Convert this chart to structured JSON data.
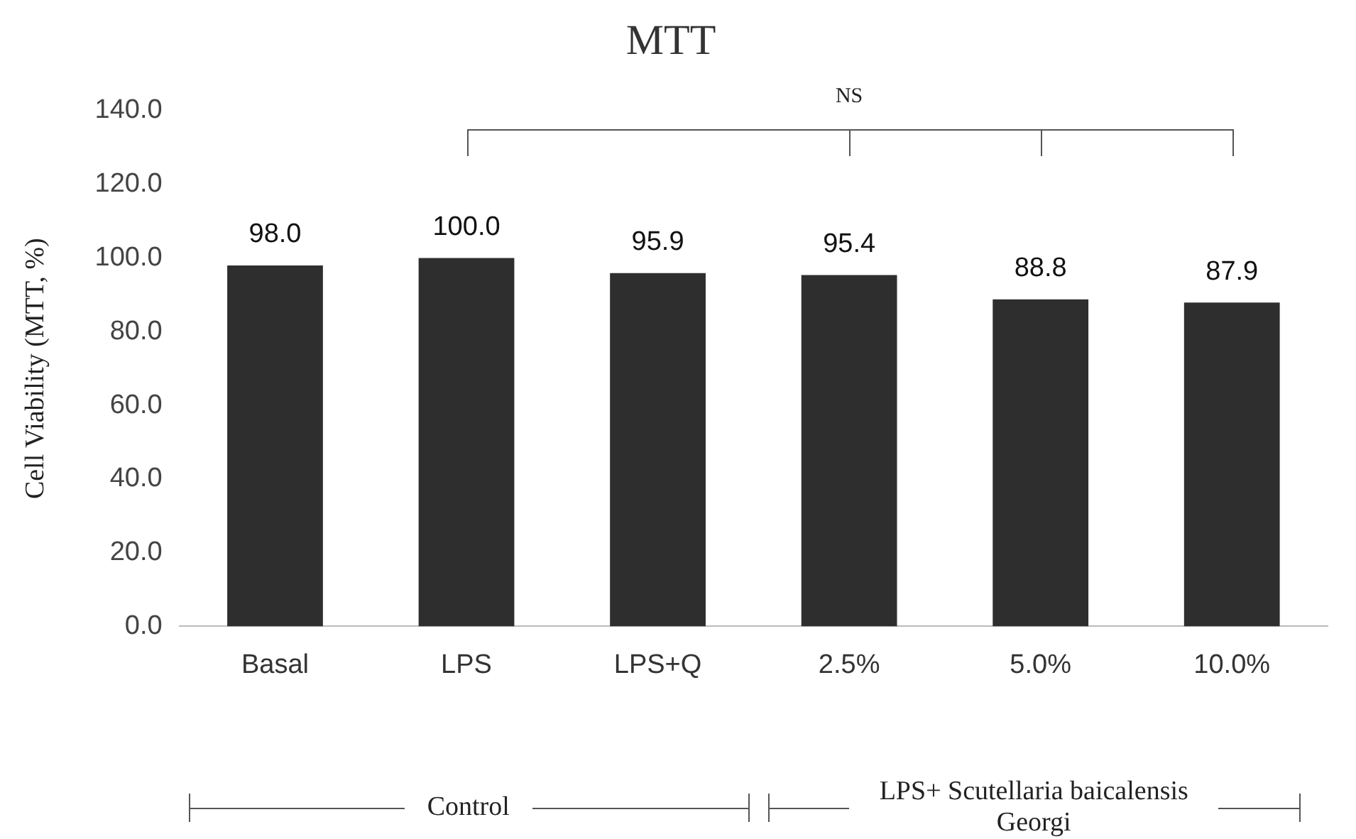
{
  "chart_data": {
    "type": "bar",
    "title": "MTT",
    "ylabel": "Cell Viability (MTT, %)",
    "categories": [
      "Basal",
      "LPS",
      "LPS+Q",
      "2.5%",
      "5.0%",
      "10.0%"
    ],
    "values": [
      98.0,
      100.0,
      95.9,
      95.4,
      88.8,
      87.9
    ],
    "value_labels": [
      "98.0",
      "100.0",
      "95.9",
      "95.4",
      "88.8",
      "87.9"
    ],
    "color": "#2e2e2e",
    "ylim": [
      0,
      140
    ],
    "yticks": [
      {
        "value": 0,
        "label": "0.0"
      },
      {
        "value": 20,
        "label": "20.0"
      },
      {
        "value": 40,
        "label": "40.0"
      },
      {
        "value": 60,
        "label": "60.0"
      },
      {
        "value": 80,
        "label": "80.0"
      },
      {
        "value": 100,
        "label": "100.0"
      },
      {
        "value": 120,
        "label": "120.0"
      },
      {
        "value": 140,
        "label": "140.0"
      }
    ],
    "grid": false,
    "legend": false,
    "annotations": [
      "NS",
      "Control",
      "LPS+ Scutellaria baicalensis Georgi"
    ]
  }
}
